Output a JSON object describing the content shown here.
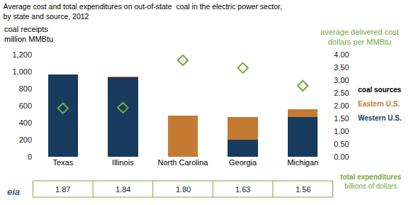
{
  "chart_data": {
    "type": "bar",
    "title": "Average cost and total expenditures on out-of-state  coal in the electric power sector,\nby state and source, 2012",
    "categories": [
      "Texas",
      "Illinois",
      "North Carolina",
      "Georgia",
      "Michigan"
    ],
    "stacked": true,
    "grid": false,
    "legend_title": "coal sources",
    "series": [
      {
        "name": "Western U.S.",
        "color": "#173a5e",
        "values": [
          970,
          935,
          0,
          200,
          470
        ]
      },
      {
        "name": "Eastern U.S.",
        "color": "#c57a34",
        "values": [
          0,
          8,
          480,
          270,
          90
        ]
      },
      {
        "name": "average delivered cost",
        "type": "scatter",
        "axis": "y2",
        "marker": "diamond-open",
        "color": "#78a843",
        "values": [
          1.9,
          1.92,
          3.78,
          3.48,
          2.78
        ]
      }
    ],
    "ylabel": "coal receipts\nmillion MMBtu",
    "ylim": [
      0,
      1200
    ],
    "yticks": [
      0,
      200,
      400,
      600,
      800,
      {
        "value": 1000,
        "label": "1,000"
      },
      {
        "value": 1200,
        "label": "1,200"
      }
    ],
    "y2label": "average delivered cost\ndollars per MMBtu",
    "y2lim": [
      0,
      4
    ],
    "y2ticks": [
      {
        "value": 0,
        "label": "0.00"
      },
      {
        "value": 0.5,
        "label": "0.50"
      },
      {
        "value": 1,
        "label": "1.00"
      },
      {
        "value": 1.5,
        "label": "1.50"
      },
      {
        "value": 2,
        "label": "2.00"
      },
      {
        "value": 2.5,
        "label": "2.50"
      },
      {
        "value": 3,
        "label": "3.00"
      },
      {
        "value": 3.5,
        "label": "3.50"
      },
      {
        "value": 4,
        "label": "4.00"
      }
    ],
    "total_expenditures": {
      "title": "total expenditures\nbillions of dollars",
      "values": [
        1.87,
        1.84,
        1.8,
        1.63,
        1.56
      ],
      "value_labels": [
        "1.87",
        "1.84",
        "1.80",
        "1.63",
        "1.56"
      ]
    },
    "source": "eia"
  }
}
